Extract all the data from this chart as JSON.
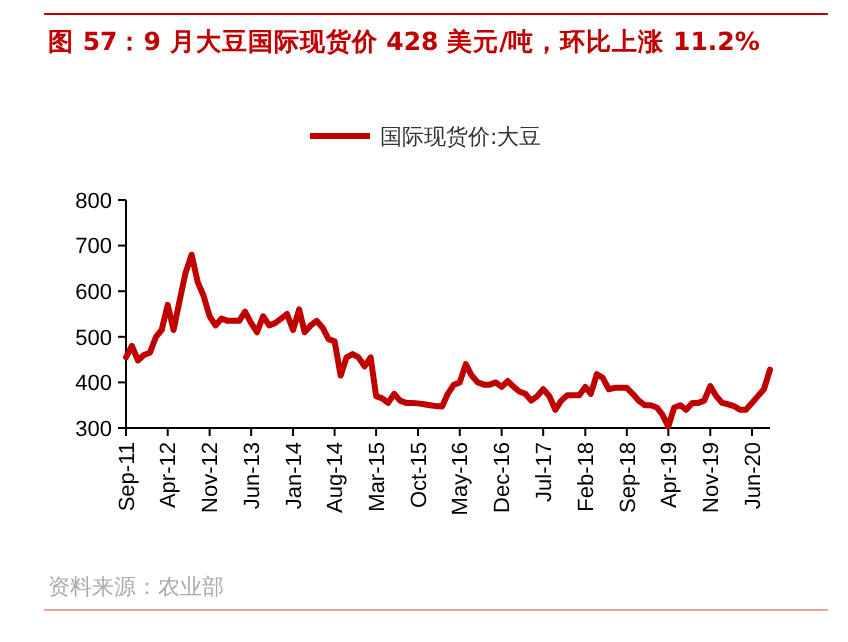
{
  "chart_data": {
    "type": "line",
    "title": "图 57：9 月大豆国际现货价 428 美元/吨，环比上涨 11.2%",
    "legend": "top",
    "annotations": [
      "资料来源：农业部"
    ],
    "ylim": [
      300,
      800
    ],
    "yticks": [
      300,
      400,
      500,
      600,
      700,
      800
    ],
    "xlim": [
      "2011-09",
      "2020-09"
    ],
    "xticks": [
      {
        "value": "2011-09",
        "label": "Sep-11"
      },
      {
        "value": "2012-04",
        "label": "Apr-12"
      },
      {
        "value": "2012-11",
        "label": "Nov-12"
      },
      {
        "value": "2013-06",
        "label": "Jun-13"
      },
      {
        "value": "2014-01",
        "label": "Jan-14"
      },
      {
        "value": "2014-08",
        "label": "Aug-14"
      },
      {
        "value": "2015-03",
        "label": "Mar-15"
      },
      {
        "value": "2015-10",
        "label": "Oct-15"
      },
      {
        "value": "2016-05",
        "label": "May-16"
      },
      {
        "value": "2016-12",
        "label": "Dec-16"
      },
      {
        "value": "2017-07",
        "label": "Jul-17"
      },
      {
        "value": "2018-02",
        "label": "Feb-18"
      },
      {
        "value": "2018-09",
        "label": "Sep-18"
      },
      {
        "value": "2019-04",
        "label": "Apr-19"
      },
      {
        "value": "2019-11",
        "label": "Nov-19"
      },
      {
        "value": "2020-06",
        "label": "Jun-20"
      }
    ],
    "x": [
      "2011-09",
      "2011-10",
      "2011-11",
      "2011-12",
      "2012-01",
      "2012-02",
      "2012-03",
      "2012-04",
      "2012-05",
      "2012-06",
      "2012-07",
      "2012-08",
      "2012-09",
      "2012-10",
      "2012-11",
      "2012-12",
      "2013-01",
      "2013-02",
      "2013-03",
      "2013-04",
      "2013-05",
      "2013-06",
      "2013-07",
      "2013-08",
      "2013-09",
      "2013-10",
      "2013-11",
      "2013-12",
      "2014-01",
      "2014-02",
      "2014-03",
      "2014-04",
      "2014-05",
      "2014-06",
      "2014-07",
      "2014-08",
      "2014-09",
      "2014-10",
      "2014-11",
      "2014-12",
      "2015-01",
      "2015-02",
      "2015-03",
      "2015-04",
      "2015-05",
      "2015-06",
      "2015-07",
      "2015-08",
      "2015-09",
      "2015-10",
      "2015-11",
      "2015-12",
      "2016-01",
      "2016-02",
      "2016-03",
      "2016-04",
      "2016-05",
      "2016-06",
      "2016-07",
      "2016-08",
      "2016-09",
      "2016-10",
      "2016-11",
      "2016-12",
      "2017-01",
      "2017-02",
      "2017-03",
      "2017-04",
      "2017-05",
      "2017-06",
      "2017-07",
      "2017-08",
      "2017-09",
      "2017-10",
      "2017-11",
      "2017-12",
      "2018-01",
      "2018-02",
      "2018-03",
      "2018-04",
      "2018-05",
      "2018-06",
      "2018-07",
      "2018-08",
      "2018-09",
      "2018-10",
      "2018-11",
      "2018-12",
      "2019-01",
      "2019-02",
      "2019-03",
      "2019-04",
      "2019-05",
      "2019-06",
      "2019-07",
      "2019-08",
      "2019-09",
      "2019-10",
      "2019-11",
      "2019-12",
      "2020-01",
      "2020-02",
      "2020-03",
      "2020-04",
      "2020-05",
      "2020-06",
      "2020-07",
      "2020-08",
      "2020-09"
    ],
    "series": [
      {
        "name": "国际现货价:大豆",
        "color": "#c00000",
        "values": [
          455,
          480,
          448,
          460,
          465,
          500,
          515,
          570,
          515,
          580,
          640,
          680,
          620,
          590,
          545,
          525,
          540,
          535,
          535,
          535,
          555,
          530,
          510,
          545,
          525,
          530,
          540,
          550,
          515,
          560,
          510,
          525,
          535,
          520,
          495,
          490,
          415,
          455,
          462,
          455,
          435,
          455,
          370,
          365,
          355,
          375,
          360,
          355,
          355,
          354,
          352,
          350,
          348,
          347,
          375,
          395,
          400,
          440,
          415,
          400,
          395,
          395,
          400,
          390,
          403,
          390,
          380,
          375,
          360,
          370,
          385,
          370,
          340,
          360,
          372,
          372,
          372,
          390,
          375,
          418,
          410,
          385,
          388,
          388,
          388,
          375,
          360,
          350,
          350,
          345,
          330,
          303,
          345,
          350,
          340,
          355,
          355,
          360,
          392,
          370,
          355,
          352,
          348,
          340,
          340,
          355,
          370,
          385,
          428
        ]
      }
    ]
  }
}
